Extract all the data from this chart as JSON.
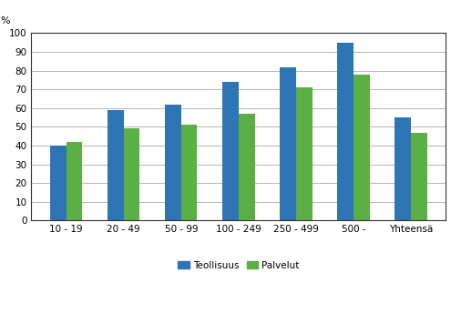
{
  "categories": [
    "10 - 19",
    "20 - 49",
    "50 - 99",
    "100 - 249",
    "250 - 499",
    "500 -",
    "Yhteensä"
  ],
  "teollisuus": [
    40,
    59,
    62,
    74,
    82,
    95,
    55
  ],
  "palvelut": [
    42,
    49,
    51,
    57,
    71,
    78,
    47
  ],
  "teollisuus_color": "#2E75B6",
  "palvelut_color": "#5AAF45",
  "ylabel": "%",
  "ylim": [
    0,
    100
  ],
  "yticks": [
    0,
    10,
    20,
    30,
    40,
    50,
    60,
    70,
    80,
    90,
    100
  ],
  "legend_teollisuus": "Teollisuus",
  "legend_palvelut": "Palvelut",
  "bar_width": 0.28,
  "background_color": "#ffffff",
  "grid_color": "#999999",
  "tick_fontsize": 7.5,
  "legend_fontsize": 7.5
}
